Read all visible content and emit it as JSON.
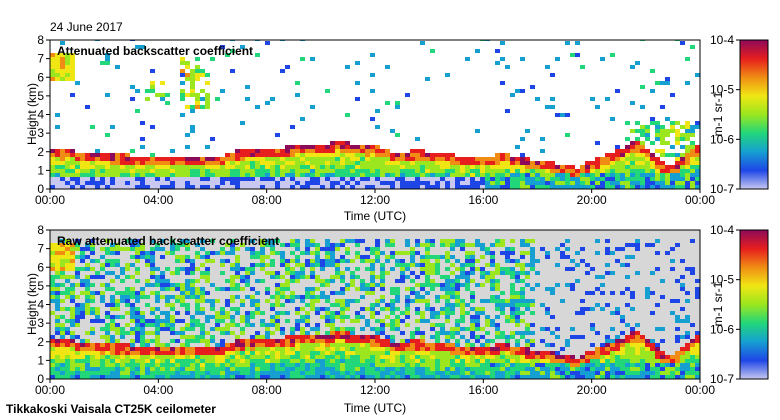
{
  "date_label": "24 June 2017",
  "footer_label": "Tikkakoski Vaisala CT25K ceilometer",
  "chart_data": [
    {
      "type": "heatmap",
      "title": "Attenuated backscatter coefficient",
      "xlabel": "Time (UTC)",
      "ylabel": "Height (km)",
      "x_ticks": [
        "00:00",
        "04:00",
        "08:00",
        "12:00",
        "16:00",
        "20:00",
        "00:00"
      ],
      "y_ticks": [
        "0",
        "1",
        "2",
        "3",
        "4",
        "5",
        "6",
        "7",
        "8"
      ],
      "ylim": [
        0,
        8
      ],
      "xlim_hours": [
        0,
        24
      ],
      "colorbar": {
        "label": "m-1 sr-1",
        "scale": "log",
        "ticks": [
          "10-7",
          "10-6",
          "10-5",
          "10-4"
        ],
        "range": [
          1e-07,
          0.0001
        ]
      }
    },
    {
      "type": "heatmap",
      "title": "Raw attenuated backscatter coefficient",
      "xlabel": "Time (UTC)",
      "ylabel": "Height (km)",
      "x_ticks": [
        "00:00",
        "04:00",
        "08:00",
        "12:00",
        "16:00",
        "20:00",
        "00:00"
      ],
      "y_ticks": [
        "0",
        "1",
        "2",
        "3",
        "4",
        "5",
        "6",
        "7",
        "8"
      ],
      "ylim": [
        0,
        8
      ],
      "xlim_hours": [
        0,
        24
      ],
      "colorbar": {
        "label": "m-1 sr-1",
        "scale": "log",
        "ticks": [
          "10-7",
          "10-6",
          "10-5",
          "10-4"
        ],
        "range": [
          1e-07,
          0.0001
        ]
      }
    }
  ],
  "colors": {
    "colormap": [
      "#c8c8f0",
      "#1e46e6",
      "#16a0d2",
      "#22d77a",
      "#9be61e",
      "#f0e614",
      "#f08c14",
      "#e61e1e",
      "#8c0a5a"
    ],
    "background": "#ffffff",
    "raw_background": "#d7d7d7"
  }
}
